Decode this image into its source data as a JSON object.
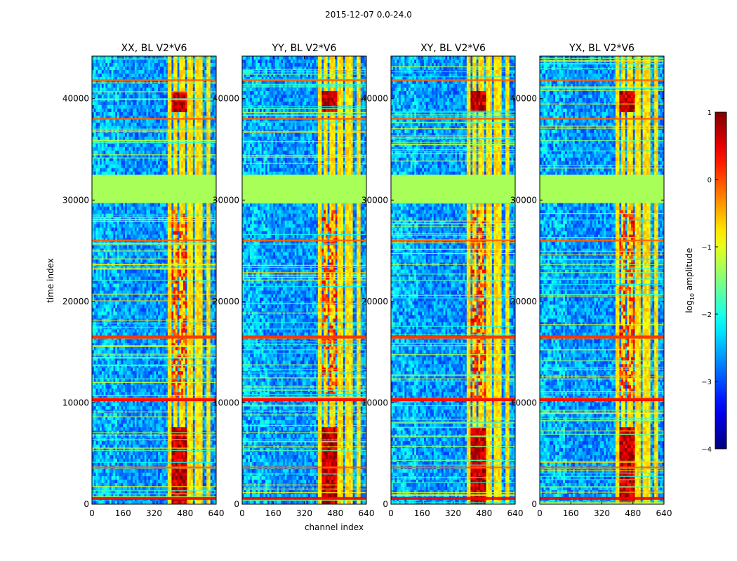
{
  "figure": {
    "suptitle": "2015-12-07 0.0-24.0"
  },
  "chart_data": {
    "type": "heatmap",
    "title": "2015-12-07 0.0-24.0",
    "xlabel": "channel index",
    "ylabel": "time index",
    "xlim": [
      0,
      640
    ],
    "ylim": [
      0,
      44200
    ],
    "x_ticks": [
      0,
      160,
      320,
      480,
      640
    ],
    "y_ticks": [
      0,
      10000,
      20000,
      30000,
      40000
    ],
    "panels": [
      {
        "title": "XX, BL V2*V6",
        "pol": "XX"
      },
      {
        "title": "YY, BL V2*V6",
        "pol": "YY"
      },
      {
        "title": "XY, BL V2*V6",
        "pol": "XY"
      },
      {
        "title": "YX, BL V2*V6",
        "pol": "YX"
      }
    ],
    "colorbar": {
      "label": "log10 amplitude",
      "label_text": "log",
      "label_sub": "10",
      "label_rest": " amplitude",
      "range": [
        -4,
        1
      ],
      "ticks": [
        1,
        0,
        -1,
        -2,
        -3,
        -4
      ],
      "tick_labels": [
        "1",
        "0",
        "−1",
        "−2",
        "−3",
        "−4"
      ]
    },
    "features": {
      "flagged_time_range": [
        29700,
        32500
      ],
      "rfi_channel_bands": [
        [
          388,
          412
        ],
        [
          420,
          442
        ],
        [
          450,
          475
        ],
        [
          488,
          520
        ],
        [
          535,
          565
        ],
        [
          590,
          610
        ]
      ],
      "strong_channel_bands": [
        [
          410,
          445
        ],
        [
          455,
          490
        ]
      ],
      "bright_time_rows": [
        600,
        3600,
        10400,
        16400,
        26000,
        38000,
        41800
      ]
    }
  }
}
